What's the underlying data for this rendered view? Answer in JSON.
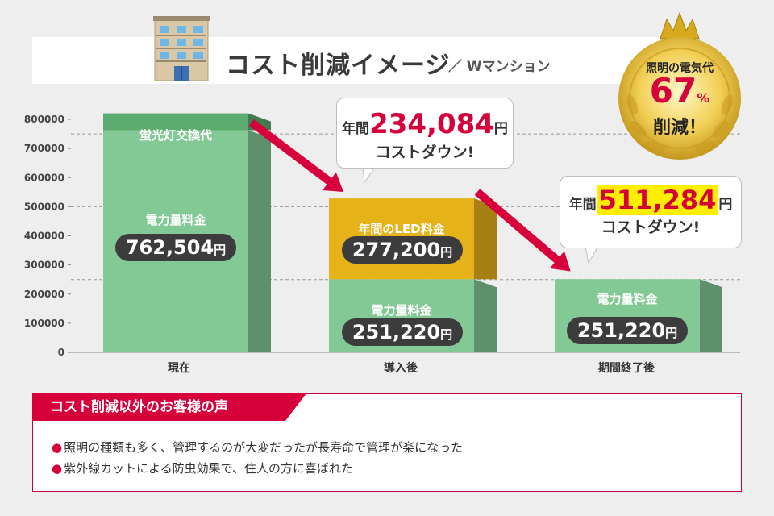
{
  "title": {
    "main": "コスト削減イメージ",
    "sub": "／ Wマンション"
  },
  "medal": {
    "line1": "照明の電気代",
    "percent": "67",
    "pct_sign": "%",
    "line3": "削減！"
  },
  "chart_data": {
    "type": "bar",
    "stacked": true,
    "ylim": [
      0,
      800000
    ],
    "yticks": [
      0,
      100000,
      200000,
      300000,
      400000,
      500000,
      600000,
      700000,
      800000
    ],
    "categories": [
      "現在",
      "導入後",
      "期間終了後"
    ],
    "bars": [
      {
        "category": "現在",
        "segments": [
          {
            "label": "電力量料金",
            "value": 762504,
            "value_text": "762,504",
            "color": "#82c995"
          },
          {
            "label": "蛍光灯交換代",
            "value": 58000,
            "value_text": "",
            "color": "#5cab6f"
          }
        ]
      },
      {
        "category": "導入後",
        "segments": [
          {
            "label": "電力量料金",
            "value": 251220,
            "value_text": "251,220",
            "color": "#82c995"
          },
          {
            "label": "年間のLED料金",
            "value": 277200,
            "value_text": "277,200",
            "color": "#e6b21a"
          }
        ]
      },
      {
        "category": "期間終了後",
        "segments": [
          {
            "label": "電力量料金",
            "value": 251220,
            "value_text": "251,220",
            "color": "#82c995"
          }
        ]
      }
    ],
    "grid_dashed_at": [
      750000,
      500000,
      250000
    ],
    "unit": "円"
  },
  "callouts": [
    {
      "prefix": "年間",
      "amount": "234,084",
      "suffix": "円",
      "line2": "コストダウン!"
    },
    {
      "prefix": "年間",
      "amount": "511,284",
      "suffix": "円",
      "line2": "コストダウン!"
    }
  ],
  "voice": {
    "header": "コスト削減以外のお客様の声",
    "items": [
      "照明の種類も多く、管理するのが大変だったが長寿命で管理が楽になった",
      "紫外線カットによる防虫効果で、住人の方に喜ばれた"
    ],
    "bullet": "●"
  },
  "colors": {
    "accent": "#d6003b",
    "green": "#82c995",
    "green_dark": "#4f9a63",
    "gold": "#e6b21a",
    "pill": "#3c3c3c"
  }
}
